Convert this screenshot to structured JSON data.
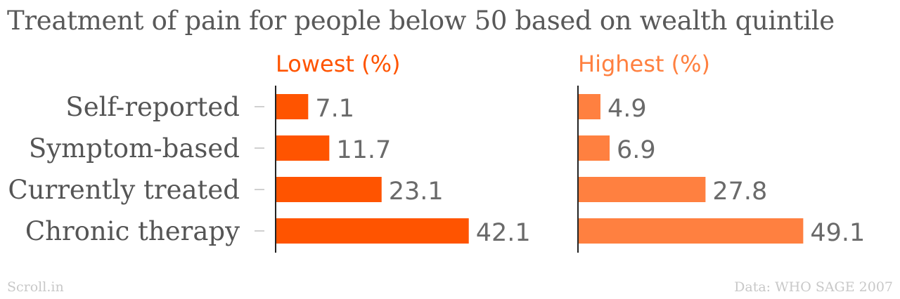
{
  "title": "Treatment of pain for people below 50 based on wealth quintile",
  "footer": {
    "brand": "Scroll.in",
    "source": "Data: WHO SAGE 2007"
  },
  "chart_data": {
    "type": "bar",
    "orientation": "horizontal",
    "categories": [
      "Self-reported",
      "Symptom-based",
      "Currently treated",
      "Chronic therapy"
    ],
    "series": [
      {
        "name": "Lowest (%)",
        "values": [
          7.1,
          11.7,
          23.1,
          42.1
        ],
        "color": "#ff5400"
      },
      {
        "name": "Highest (%)",
        "values": [
          4.9,
          6.9,
          27.8,
          49.1
        ],
        "color": "#ff8040"
      }
    ],
    "xlim": [
      0,
      55
    ],
    "grid": false,
    "legend": "none",
    "colors": {
      "title": "#595959",
      "category_label": "#555555",
      "value_label": "#6a6a6a",
      "axis": "#222222",
      "tick": "#d0d0d0",
      "footer": "#c8c8c8"
    }
  }
}
